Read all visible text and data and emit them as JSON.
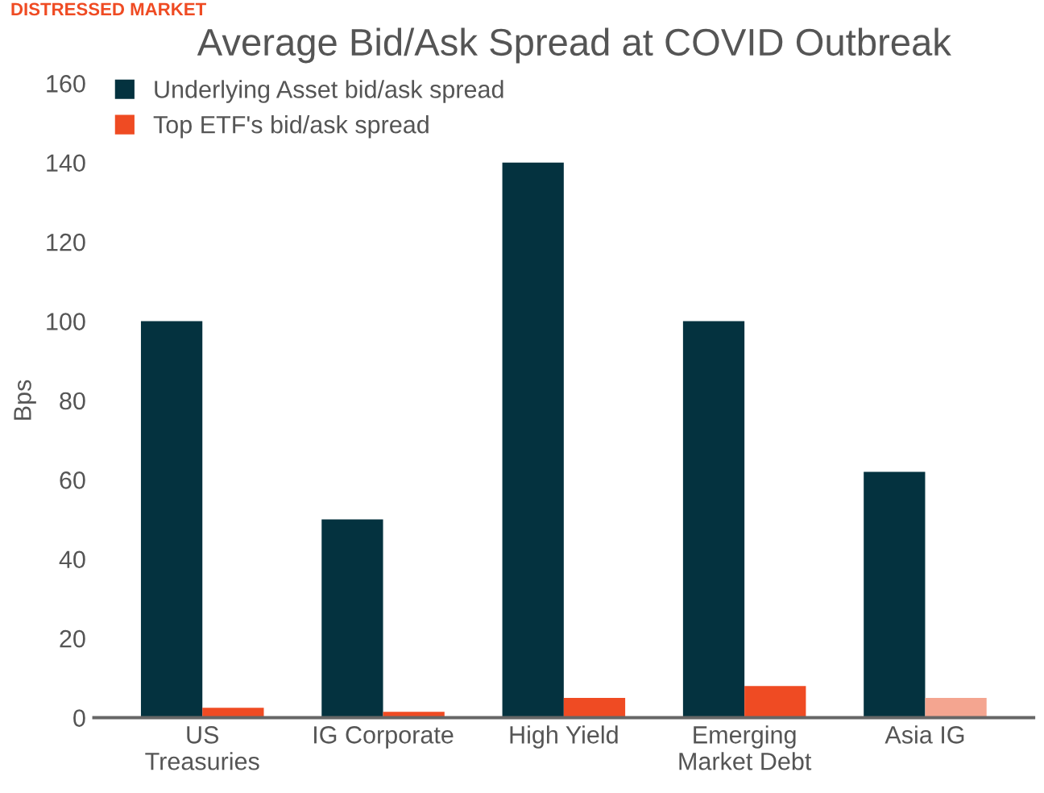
{
  "chart_data": {
    "type": "bar",
    "title": "Average Bid/Ask Spread at COVID Outbreak",
    "ylabel": "Bps",
    "annotations": [
      "DISTRESSED MARKET"
    ],
    "categories": [
      "US\nTreasuries",
      "IG Corporate",
      "High Yield",
      "Emerging\nMarket Debt",
      "Asia IG"
    ],
    "series": [
      {
        "name": "Underlying Asset bid/ask spread",
        "color": "#04323f",
        "values": [
          100,
          50,
          140,
          100,
          62
        ]
      },
      {
        "name": "Top ETF's bid/ask spread",
        "color": "#ef4b23",
        "colors": [
          "#ef4b23",
          "#ef4b23",
          "#ef4b23",
          "#ef4b23",
          "#f4a590"
        ],
        "values": [
          2.5,
          1.5,
          5,
          8,
          5
        ]
      }
    ],
    "ylim": [
      0,
      160
    ],
    "yticks": [
      0,
      20,
      40,
      60,
      80,
      100,
      120,
      140,
      160
    ],
    "grid": false,
    "legend": "top left"
  }
}
